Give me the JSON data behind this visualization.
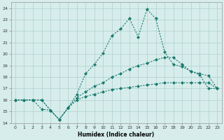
{
  "xlabel": "Humidex (Indice chaleur)",
  "background_color": "#d6edeb",
  "grid_color": "#aed0cc",
  "line_color": "#1a7a6e",
  "xlim": [
    -0.5,
    23.5
  ],
  "ylim": [
    14,
    24.5
  ],
  "xticks": [
    0,
    1,
    2,
    3,
    4,
    5,
    6,
    7,
    8,
    9,
    10,
    11,
    12,
    13,
    14,
    15,
    16,
    17,
    18,
    19,
    20,
    21,
    22,
    23
  ],
  "yticks": [
    14,
    15,
    16,
    17,
    18,
    19,
    20,
    21,
    22,
    23,
    24
  ],
  "line_jagged_x": [
    0,
    1,
    2,
    3,
    4,
    5,
    6,
    7,
    8,
    9,
    10,
    11,
    12,
    13,
    14,
    15,
    16,
    17,
    18,
    19,
    20,
    21,
    22,
    23
  ],
  "line_jagged_y": [
    16,
    16,
    16,
    15.2,
    15.1,
    14.3,
    15.3,
    16.5,
    18.3,
    19.1,
    20.1,
    21.6,
    22.2,
    23.1,
    21.5,
    23.9,
    23.1,
    20.2,
    19.1,
    18.9,
    18.5,
    18.2,
    17.0,
    17.0
  ],
  "line_mid_x": [
    0,
    1,
    2,
    3,
    4,
    5,
    6,
    7,
    8,
    9,
    10,
    11,
    12,
    13,
    14,
    15,
    16,
    17,
    18,
    19,
    20,
    21,
    22,
    23
  ],
  "line_mid_y": [
    16,
    16,
    16,
    16,
    15.1,
    14.3,
    15.3,
    16.2,
    16.7,
    17.2,
    17.5,
    18.0,
    18.3,
    18.7,
    19.0,
    19.2,
    19.5,
    19.7,
    19.7,
    19.1,
    18.5,
    18.3,
    18.1,
    17.0
  ],
  "line_low_x": [
    0,
    1,
    2,
    3,
    4,
    5,
    6,
    7,
    8,
    9,
    10,
    11,
    12,
    13,
    14,
    15,
    16,
    17,
    18,
    19,
    20,
    21,
    22,
    23
  ],
  "line_low_y": [
    16,
    16,
    16,
    16,
    15.1,
    14.3,
    15.3,
    16.0,
    16.3,
    16.5,
    16.7,
    16.9,
    17.0,
    17.1,
    17.2,
    17.3,
    17.4,
    17.5,
    17.5,
    17.5,
    17.5,
    17.5,
    17.5,
    17.0
  ]
}
